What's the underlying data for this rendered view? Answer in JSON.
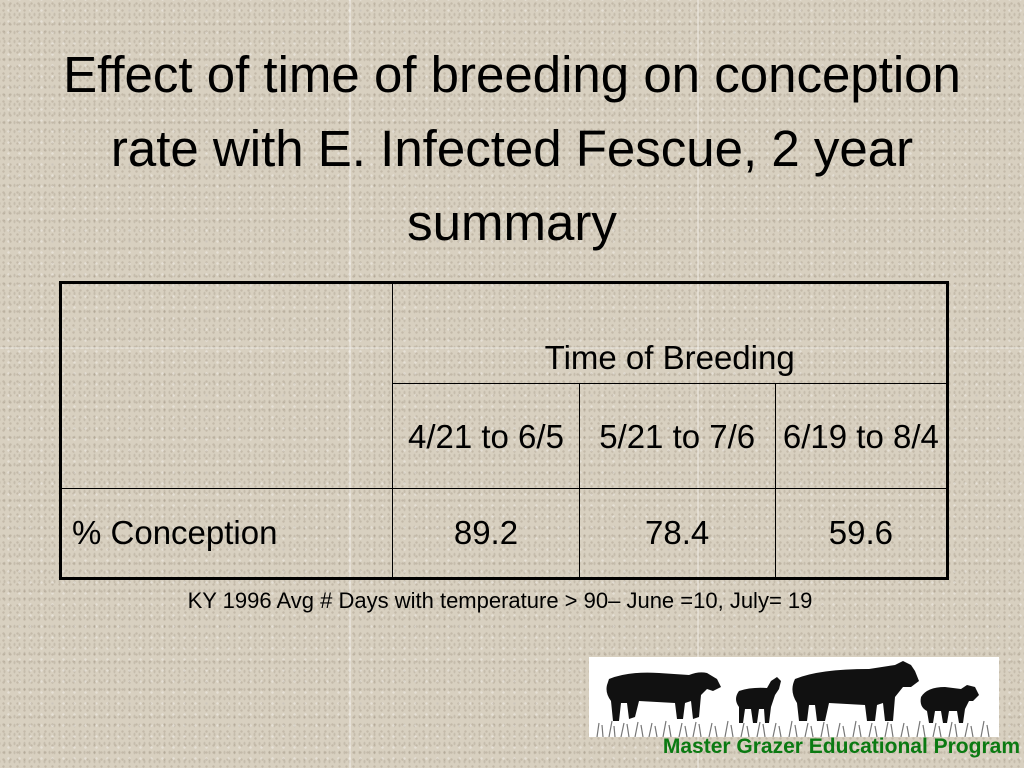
{
  "slide": {
    "title": "Effect of time of breeding on conception rate with E. Infected Fescue, 2 year summary"
  },
  "table": {
    "group_header": "Time of Breeding",
    "periods": [
      "4/21 to 6/5",
      "5/21 to 7/6",
      "6/19 to 8/4"
    ],
    "rows": [
      {
        "label": "% Conception",
        "values": [
          "89.2",
          "78.4",
          "59.6"
        ]
      }
    ]
  },
  "footnote": "KY 1996 Avg # Days with temperature > 90– June =10, July= 19",
  "logo": {
    "caption": "Master Grazer Educational Program",
    "icon": "livestock-silhouettes-icon",
    "caption_color": "#0b7a12"
  }
}
